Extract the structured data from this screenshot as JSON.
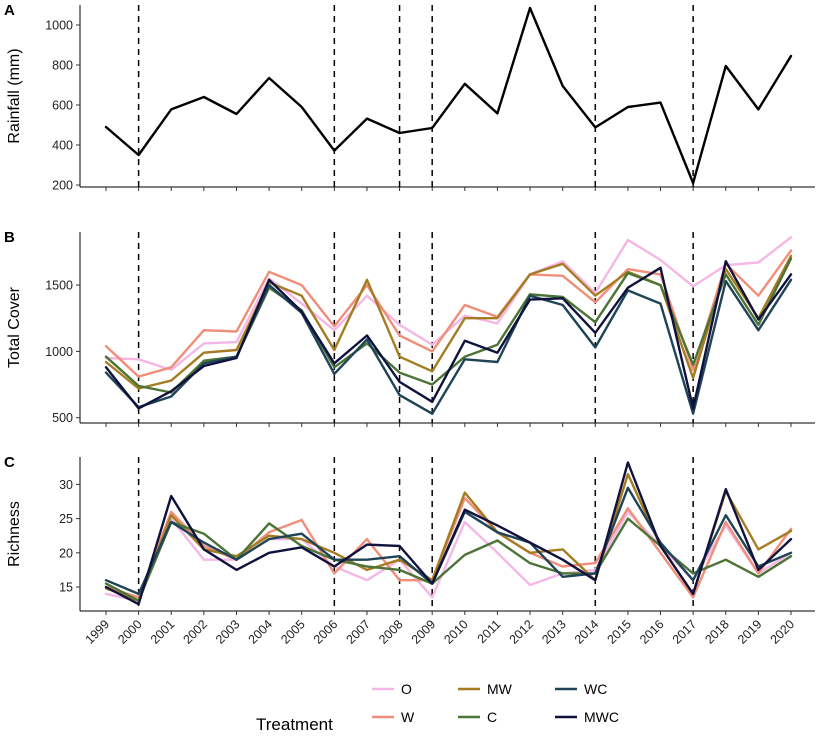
{
  "chart_data": {
    "type": "line",
    "years": [
      "1999",
      "2000",
      "2001",
      "2002",
      "2003",
      "2004",
      "2005",
      "2006",
      "2007",
      "2008",
      "2009",
      "2010",
      "2011",
      "2012",
      "2013",
      "2014",
      "2015",
      "2016",
      "2017",
      "2018",
      "2019",
      "2020"
    ],
    "drought_years": [
      "2000",
      "2006",
      "2008",
      "2009",
      "2014",
      "2017"
    ],
    "panels": [
      {
        "letter": "A",
        "ylabel": "Rainfall (mm)",
        "ylim": [
          190,
          1100
        ],
        "yticks": [
          200,
          400,
          600,
          800,
          1000
        ],
        "series": [
          {
            "name": "Rainfall",
            "color": "#000000",
            "values": [
              490,
              350,
              578,
              640,
              555,
              735,
              590,
              372,
              532,
              460,
              485,
              706,
              558,
              1085,
              695,
              488,
              590,
              612,
              210,
              795,
              578,
              845
            ]
          }
        ]
      },
      {
        "letter": "B",
        "ylabel": "Total Cover",
        "ylim": [
          460,
          1900
        ],
        "yticks": [
          500,
          1000,
          1500
        ],
        "series": [
          {
            "name": "O",
            "color": "#F5B8E6",
            "values": [
              950,
              940,
              860,
              1060,
              1070,
              1550,
              1360,
              1160,
              1420,
              1200,
              1050,
              1270,
              1210,
              1580,
              1680,
              1440,
              1840,
              1690,
              1490,
              1650,
              1670,
              1860
            ]
          },
          {
            "name": "W",
            "color": "#F08E7A",
            "values": [
              1040,
              810,
              880,
              1160,
              1150,
              1600,
              1500,
              1190,
              1500,
              1120,
              1000,
              1350,
              1260,
              1580,
              1570,
              1370,
              1620,
              1580,
              860,
              1660,
              1420,
              1760
            ]
          },
          {
            "name": "MW",
            "color": "#A57C22",
            "values": [
              920,
              720,
              780,
              990,
              1010,
              1520,
              1420,
              1010,
              1540,
              960,
              850,
              1250,
              1250,
              1580,
              1660,
              1420,
              1600,
              1500,
              800,
              1620,
              1250,
              1720
            ]
          },
          {
            "name": "C",
            "color": "#4C7437",
            "values": [
              960,
              740,
              690,
              930,
              960,
              1480,
              1310,
              880,
              1060,
              840,
              750,
              960,
              1050,
              1430,
              1410,
              1220,
              1590,
              1500,
              900,
              1580,
              1200,
              1700
            ]
          },
          {
            "name": "WC",
            "color": "#1F4458",
            "values": [
              840,
              580,
              660,
              910,
              960,
              1500,
              1290,
              830,
              1090,
              670,
              530,
              940,
              920,
              1420,
              1350,
              1030,
              1460,
              1360,
              530,
              1530,
              1160,
              1540
            ]
          },
          {
            "name": "MWC",
            "color": "#10123E",
            "values": [
              880,
              570,
              700,
              890,
              950,
              1540,
              1300,
              910,
              1120,
              770,
              620,
              1080,
              990,
              1390,
              1400,
              1140,
              1480,
              1630,
              570,
              1680,
              1240,
              1580
            ]
          }
        ]
      },
      {
        "letter": "C",
        "ylabel": "Richness",
        "ylim": [
          11.5,
          34
        ],
        "yticks": [
          15,
          20,
          25,
          30
        ],
        "series": [
          {
            "name": "O",
            "color": "#F5B8E6",
            "values": [
              14.0,
              13.0,
              25.0,
              19.0,
              19.0,
              22.0,
              22.0,
              18.0,
              16.0,
              19.0,
              13.5,
              24.5,
              20.0,
              15.3,
              17.0,
              17.5,
              26.0,
              21.0,
              16.0,
              24.0,
              17.0,
              20.0
            ]
          },
          {
            "name": "W",
            "color": "#F08E7A",
            "values": [
              15.0,
              13.5,
              26.0,
              21.0,
              19.0,
              23.0,
              24.8,
              17.0,
              22.0,
              16.0,
              16.0,
              28.0,
              23.0,
              20.0,
              18.0,
              18.5,
              26.5,
              20.0,
              13.5,
              24.5,
              17.0,
              23.5
            ]
          },
          {
            "name": "MW",
            "color": "#A57C22",
            "values": [
              14.8,
              13.0,
              25.5,
              20.5,
              19.5,
              22.5,
              22.0,
              20.0,
              17.5,
              19.0,
              16.0,
              28.8,
              23.0,
              20.0,
              20.5,
              16.0,
              31.5,
              21.0,
              14.0,
              29.0,
              20.5,
              23.2
            ]
          },
          {
            "name": "C",
            "color": "#4C7437",
            "values": [
              15.5,
              13.0,
              24.5,
              22.8,
              19.0,
              24.3,
              21.0,
              19.0,
              18.0,
              17.5,
              15.5,
              19.7,
              21.8,
              18.5,
              17.0,
              17.0,
              25.0,
              21.0,
              17.0,
              19.0,
              16.5,
              19.5
            ]
          },
          {
            "name": "WC",
            "color": "#1F4458",
            "values": [
              16.0,
              14.0,
              24.5,
              21.5,
              19.0,
              22.0,
              22.8,
              19.0,
              19.0,
              19.5,
              15.5,
              26.0,
              23.0,
              21.5,
              16.5,
              17.0,
              29.5,
              21.5,
              16.0,
              25.5,
              18.0,
              20.0
            ]
          },
          {
            "name": "MWC",
            "color": "#10123E",
            "values": [
              15.0,
              12.5,
              28.3,
              20.5,
              17.5,
              20.0,
              20.8,
              18.0,
              21.2,
              21.0,
              15.5,
              26.3,
              24.0,
              21.5,
              19.0,
              16.0,
              33.2,
              21.0,
              14.0,
              29.3,
              17.5,
              22.0
            ]
          }
        ]
      }
    ],
    "legend": {
      "title": "Treatment",
      "placement": "bottom",
      "entries": [
        {
          "name": "O",
          "color": "#F5B8E6"
        },
        {
          "name": "W",
          "color": "#F08E7A"
        },
        {
          "name": "MW",
          "color": "#A57C22"
        },
        {
          "name": "C",
          "color": "#4C7437"
        },
        {
          "name": "WC",
          "color": "#1F4458"
        },
        {
          "name": "MWC",
          "color": "#10123E"
        }
      ]
    }
  }
}
